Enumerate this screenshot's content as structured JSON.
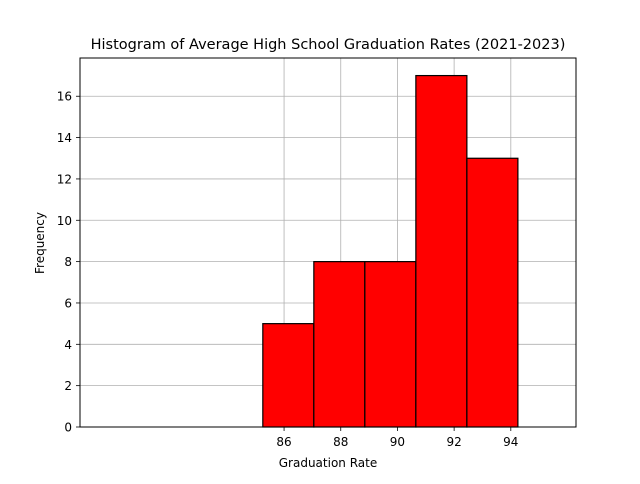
{
  "chart_data": {
    "type": "bar",
    "subtype": "histogram",
    "title": "Histogram of Average High School Graduation Rates (2021-2023)",
    "xlabel": "Graduation Rate",
    "ylabel": "Frequency",
    "bins": [
      {
        "start": 85.25,
        "end": 87.05,
        "count": 5
      },
      {
        "start": 87.05,
        "end": 88.85,
        "count": 8
      },
      {
        "start": 88.85,
        "end": 90.65,
        "count": 8
      },
      {
        "start": 90.65,
        "end": 92.45,
        "count": 17
      },
      {
        "start": 92.45,
        "end": 94.25,
        "count": 13
      }
    ],
    "xlim": [
      78.8,
      96.3
    ],
    "ylim": [
      0,
      17.85
    ],
    "xticks": [
      86,
      88,
      90,
      92,
      94
    ],
    "yticks": [
      0,
      2,
      4,
      6,
      8,
      10,
      12,
      14,
      16
    ],
    "grid": true,
    "bar_color": "#ff0000",
    "edge_color": "#000000",
    "grid_color": "#b0b0b0"
  }
}
